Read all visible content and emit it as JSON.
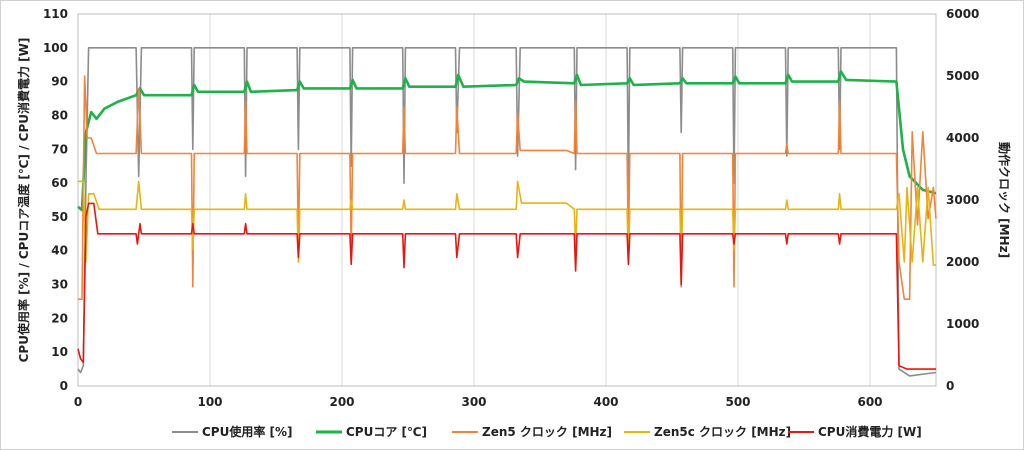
{
  "chart_data": {
    "type": "line",
    "x_axis": {
      "min": 0,
      "max": 650,
      "ticks": [
        0,
        100,
        200,
        300,
        400,
        500,
        600
      ]
    },
    "y_left": {
      "label": "CPU使用率 [%] / CPUコア温度 [℃] / CPU消費電力 [W]",
      "min": 0,
      "max": 110,
      "ticks": [
        0,
        10,
        20,
        30,
        40,
        50,
        60,
        70,
        80,
        90,
        100,
        110
      ]
    },
    "y_right": {
      "label": "動作クロック [MHz]",
      "min": 0,
      "max": 6000,
      "ticks": [
        0,
        1000,
        2000,
        3000,
        4000,
        5000,
        6000
      ]
    },
    "grid": "vertical",
    "legend_position": "bottom",
    "series": [
      {
        "name": "CPU使用率 [%]",
        "axis": "left",
        "color": "#8c8c8c",
        "points": [
          [
            0,
            5
          ],
          [
            2,
            4
          ],
          [
            4,
            6
          ],
          [
            6,
            60
          ],
          [
            8,
            100
          ],
          [
            44,
            100
          ],
          [
            46,
            62
          ],
          [
            48,
            100
          ],
          [
            86,
            100
          ],
          [
            87,
            70
          ],
          [
            88,
            100
          ],
          [
            126,
            100
          ],
          [
            127,
            62
          ],
          [
            128,
            100
          ],
          [
            166,
            100
          ],
          [
            167,
            70
          ],
          [
            168,
            100
          ],
          [
            206,
            100
          ],
          [
            207,
            65
          ],
          [
            208,
            100
          ],
          [
            246,
            100
          ],
          [
            247,
            60
          ],
          [
            248,
            100
          ],
          [
            286,
            100
          ],
          [
            287,
            75
          ],
          [
            289,
            100
          ],
          [
            332,
            100
          ],
          [
            333,
            68
          ],
          [
            335,
            100
          ],
          [
            376,
            100
          ],
          [
            377,
            64
          ],
          [
            378,
            100
          ],
          [
            416,
            100
          ],
          [
            417,
            58
          ],
          [
            418,
            100
          ],
          [
            456,
            100
          ],
          [
            457,
            75
          ],
          [
            458,
            100
          ],
          [
            496,
            100
          ],
          [
            497,
            60
          ],
          [
            498,
            100
          ],
          [
            536,
            100
          ],
          [
            537,
            68
          ],
          [
            538,
            100
          ],
          [
            576,
            100
          ],
          [
            577,
            70
          ],
          [
            578,
            100
          ],
          [
            620,
            100
          ],
          [
            622,
            5
          ],
          [
            630,
            3
          ],
          [
            650,
            4
          ]
        ]
      },
      {
        "name": "CPUコア [℃]",
        "axis": "left",
        "color": "#1fb24a",
        "points": [
          [
            0,
            53
          ],
          [
            3,
            52
          ],
          [
            6,
            75
          ],
          [
            10,
            81
          ],
          [
            14,
            79
          ],
          [
            20,
            82
          ],
          [
            30,
            84
          ],
          [
            44,
            86
          ],
          [
            47,
            88
          ],
          [
            50,
            86
          ],
          [
            86,
            86
          ],
          [
            88,
            89
          ],
          [
            91,
            87
          ],
          [
            126,
            87
          ],
          [
            128,
            90
          ],
          [
            131,
            87
          ],
          [
            166,
            87.5
          ],
          [
            168,
            90
          ],
          [
            171,
            88
          ],
          [
            206,
            88
          ],
          [
            208,
            90.5
          ],
          [
            211,
            88
          ],
          [
            246,
            88
          ],
          [
            248,
            91
          ],
          [
            251,
            88.5
          ],
          [
            286,
            88.5
          ],
          [
            288,
            92
          ],
          [
            292,
            88.5
          ],
          [
            332,
            89
          ],
          [
            334,
            91
          ],
          [
            338,
            90
          ],
          [
            376,
            89.5
          ],
          [
            378,
            92
          ],
          [
            381,
            89
          ],
          [
            416,
            89.5
          ],
          [
            418,
            91
          ],
          [
            421,
            89
          ],
          [
            456,
            89.5
          ],
          [
            458,
            91
          ],
          [
            461,
            89.5
          ],
          [
            496,
            89.5
          ],
          [
            498,
            91.5
          ],
          [
            501,
            89.5
          ],
          [
            536,
            89.5
          ],
          [
            538,
            92
          ],
          [
            541,
            90
          ],
          [
            576,
            90
          ],
          [
            578,
            93
          ],
          [
            582,
            90.5
          ],
          [
            620,
            90
          ],
          [
            625,
            70
          ],
          [
            630,
            62
          ],
          [
            640,
            58
          ],
          [
            650,
            57
          ]
        ]
      },
      {
        "name": "Zen5 クロック [MHz]",
        "axis": "right",
        "color": "#f0843c",
        "points": [
          [
            0,
            1400
          ],
          [
            3,
            1400
          ],
          [
            5,
            5000
          ],
          [
            7,
            4000
          ],
          [
            10,
            4000
          ],
          [
            14,
            3750
          ],
          [
            44,
            3750
          ],
          [
            46,
            4800
          ],
          [
            48,
            3750
          ],
          [
            86,
            3750
          ],
          [
            87,
            1600
          ],
          [
            88,
            3750
          ],
          [
            126,
            3750
          ],
          [
            127,
            4600
          ],
          [
            128,
            3750
          ],
          [
            166,
            3750
          ],
          [
            167,
            2200
          ],
          [
            168,
            3750
          ],
          [
            206,
            3750
          ],
          [
            207,
            2200
          ],
          [
            208,
            3750
          ],
          [
            246,
            3750
          ],
          [
            247,
            4500
          ],
          [
            248,
            3750
          ],
          [
            286,
            3750
          ],
          [
            287,
            4500
          ],
          [
            289,
            3750
          ],
          [
            332,
            3750
          ],
          [
            333,
            4400
          ],
          [
            335,
            3800
          ],
          [
            370,
            3800
          ],
          [
            376,
            3750
          ],
          [
            377,
            4600
          ],
          [
            378,
            3750
          ],
          [
            416,
            3750
          ],
          [
            417,
            2200
          ],
          [
            418,
            3750
          ],
          [
            456,
            3750
          ],
          [
            457,
            1600
          ],
          [
            458,
            3750
          ],
          [
            496,
            3750
          ],
          [
            497,
            1600
          ],
          [
            498,
            3750
          ],
          [
            536,
            3750
          ],
          [
            537,
            3900
          ],
          [
            538,
            3750
          ],
          [
            576,
            3750
          ],
          [
            577,
            4600
          ],
          [
            578,
            3750
          ],
          [
            620,
            3750
          ],
          [
            622,
            2000
          ],
          [
            626,
            1400
          ],
          [
            630,
            1400
          ],
          [
            632,
            4100
          ],
          [
            636,
            2600
          ],
          [
            640,
            4100
          ],
          [
            644,
            2700
          ],
          [
            648,
            3200
          ],
          [
            650,
            2700
          ]
        ]
      },
      {
        "name": "Zen5c クロック [MHz]",
        "axis": "right",
        "color": "#e6b414",
        "points": [
          [
            0,
            3300
          ],
          [
            4,
            3300
          ],
          [
            6,
            2000
          ],
          [
            8,
            3100
          ],
          [
            12,
            3100
          ],
          [
            16,
            2850
          ],
          [
            44,
            2850
          ],
          [
            46,
            3300
          ],
          [
            48,
            2850
          ],
          [
            86,
            2850
          ],
          [
            87,
            2200
          ],
          [
            88,
            2850
          ],
          [
            126,
            2850
          ],
          [
            127,
            3100
          ],
          [
            128,
            2850
          ],
          [
            166,
            2850
          ],
          [
            167,
            2000
          ],
          [
            168,
            2850
          ],
          [
            206,
            2850
          ],
          [
            207,
            3000
          ],
          [
            208,
            2850
          ],
          [
            246,
            2850
          ],
          [
            247,
            3000
          ],
          [
            248,
            2850
          ],
          [
            286,
            2850
          ],
          [
            287,
            3100
          ],
          [
            289,
            2850
          ],
          [
            332,
            2850
          ],
          [
            333,
            3300
          ],
          [
            336,
            2950
          ],
          [
            370,
            2950
          ],
          [
            376,
            2850
          ],
          [
            377,
            2200
          ],
          [
            378,
            2850
          ],
          [
            416,
            2850
          ],
          [
            417,
            2000
          ],
          [
            418,
            2850
          ],
          [
            456,
            2850
          ],
          [
            457,
            2000
          ],
          [
            458,
            2850
          ],
          [
            496,
            2850
          ],
          [
            497,
            2200
          ],
          [
            498,
            2850
          ],
          [
            536,
            2850
          ],
          [
            537,
            3000
          ],
          [
            538,
            2850
          ],
          [
            576,
            2850
          ],
          [
            577,
            3100
          ],
          [
            578,
            2850
          ],
          [
            620,
            2850
          ],
          [
            622,
            3100
          ],
          [
            626,
            2000
          ],
          [
            628,
            3200
          ],
          [
            632,
            2000
          ],
          [
            636,
            3200
          ],
          [
            640,
            2000
          ],
          [
            644,
            3200
          ],
          [
            648,
            1950
          ],
          [
            650,
            1950
          ]
        ]
      },
      {
        "name": "CPU消費電力 [W]",
        "axis": "left",
        "color": "#e8160e",
        "points": [
          [
            0,
            11
          ],
          [
            2,
            8
          ],
          [
            4,
            7
          ],
          [
            6,
            50
          ],
          [
            8,
            54
          ],
          [
            12,
            54
          ],
          [
            15,
            45
          ],
          [
            44,
            45
          ],
          [
            45,
            42
          ],
          [
            46,
            45
          ],
          [
            47,
            48
          ],
          [
            48,
            45
          ],
          [
            86,
            45
          ],
          [
            87,
            48
          ],
          [
            88,
            45
          ],
          [
            126,
            45
          ],
          [
            127,
            48
          ],
          [
            128,
            45
          ],
          [
            166,
            45
          ],
          [
            167,
            38
          ],
          [
            168,
            45
          ],
          [
            206,
            45
          ],
          [
            207,
            36
          ],
          [
            208,
            45
          ],
          [
            246,
            45
          ],
          [
            247,
            35
          ],
          [
            248,
            45
          ],
          [
            286,
            45
          ],
          [
            287,
            38
          ],
          [
            289,
            45
          ],
          [
            332,
            45
          ],
          [
            333,
            38
          ],
          [
            335,
            45
          ],
          [
            376,
            45
          ],
          [
            377,
            34
          ],
          [
            378,
            45
          ],
          [
            416,
            45
          ],
          [
            417,
            36
          ],
          [
            418,
            45
          ],
          [
            456,
            45
          ],
          [
            457,
            30
          ],
          [
            458,
            45
          ],
          [
            496,
            45
          ],
          [
            497,
            42
          ],
          [
            498,
            45
          ],
          [
            536,
            45
          ],
          [
            537,
            42
          ],
          [
            538,
            45
          ],
          [
            576,
            45
          ],
          [
            577,
            42
          ],
          [
            578,
            45
          ],
          [
            620,
            45
          ],
          [
            622,
            6
          ],
          [
            628,
            5
          ],
          [
            650,
            5
          ]
        ]
      }
    ]
  }
}
